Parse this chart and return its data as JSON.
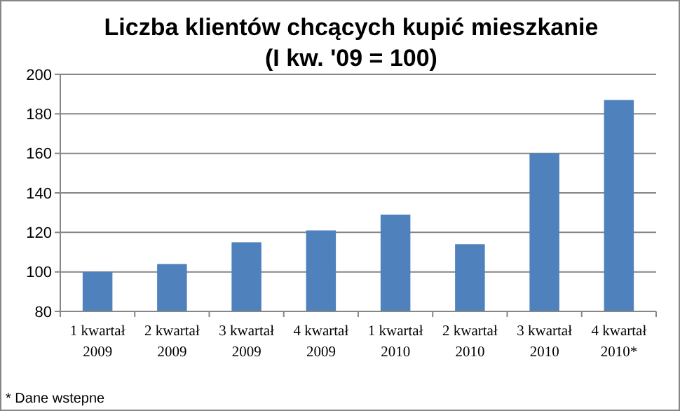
{
  "chart_data": {
    "type": "bar",
    "title": "Liczba klientów chcących kupić mieszkanie\n(I kw. '09 = 100)",
    "categories": [
      "1 kwartał\n2009",
      "2 kwartał\n2009",
      "3 kwartał\n2009",
      "4 kwartał\n2009",
      "1 kwartał\n2010",
      "2 kwartał\n2010",
      "3 kwartał\n2010",
      "4 kwartał\n2010*"
    ],
    "values": [
      100,
      104,
      115,
      121,
      129,
      114,
      160,
      187
    ],
    "color": "#4f81bd",
    "ylim": [
      80,
      200
    ],
    "yticks": [
      80,
      100,
      120,
      140,
      160,
      180,
      200
    ],
    "grid": "y",
    "annotations": [
      "* Dane wstepne"
    ]
  }
}
